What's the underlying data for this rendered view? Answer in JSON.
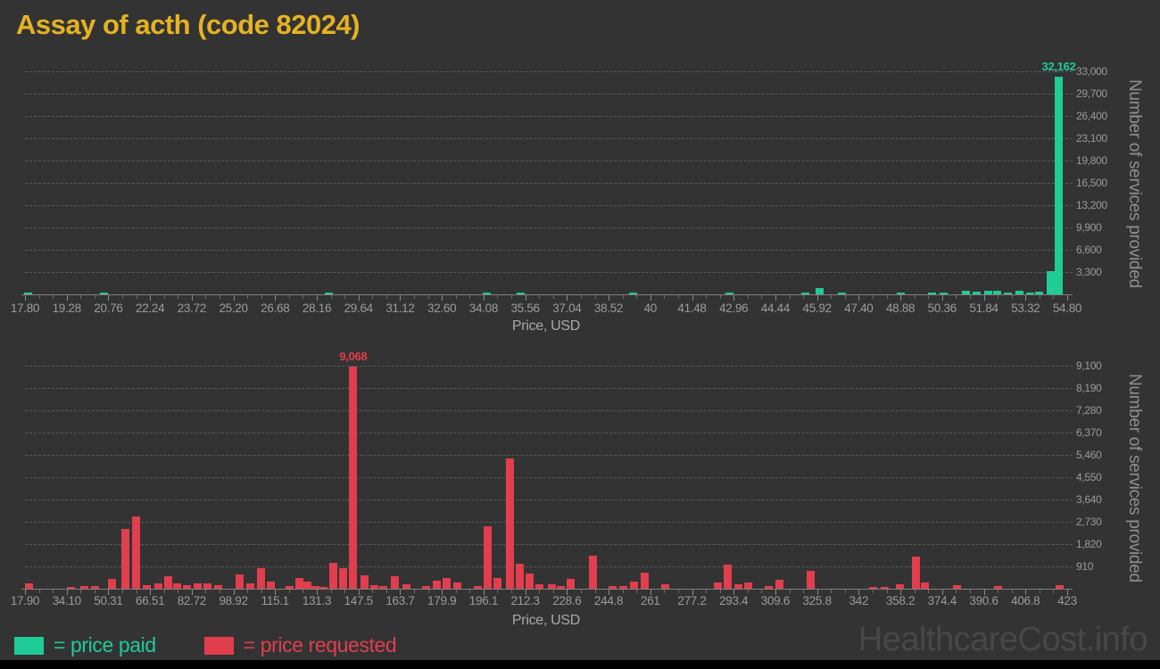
{
  "title": "Assay of acth (code 82024)",
  "watermark": "HealthcareCost.info",
  "colors": {
    "background": "#333333",
    "title": "#e5b222",
    "price_paid": "#1fcb97",
    "price_requested": "#e13e4e",
    "axis_text": "#9b9b9b",
    "grid": "#5a5a5a",
    "watermark": "#484848"
  },
  "legend": {
    "items": [
      {
        "name": "price-paid",
        "swatch_color": "#1fcb97",
        "label": "= price paid"
      },
      {
        "name": "price-requested",
        "swatch_color": "#e13e4e",
        "label": "= price requested"
      }
    ]
  },
  "chart_data": [
    {
      "type": "bar",
      "series_name": "price paid",
      "color": "#1fcb97",
      "xlabel": "Price, USD",
      "ylabel": "Number of services provided",
      "x_range": [
        17.8,
        54.8
      ],
      "x_tick_labels": [
        "17.80",
        "19.28",
        "20.76",
        "22.24",
        "23.72",
        "25.20",
        "26.68",
        "28.16",
        "29.64",
        "31.12",
        "32.60",
        "34.08",
        "35.56",
        "37.04",
        "38.52",
        "40",
        "41.48",
        "42.96",
        "44.44",
        "45.92",
        "47.40",
        "48.88",
        "50.36",
        "51.84",
        "53.32",
        "54.80"
      ],
      "y_tick_labels": [
        "3,300",
        "6,600",
        "9,900",
        "13,200",
        "16,500",
        "19,800",
        "23,100",
        "26,400",
        "29,700",
        "33,000"
      ],
      "y_grid_max": 33000,
      "grid": "horizontal-dashed",
      "legend_position": "bottom",
      "peak_label": "32,162",
      "bars": [
        [
          17.9,
          250
        ],
        [
          20.6,
          200
        ],
        [
          28.6,
          200
        ],
        [
          34.2,
          220
        ],
        [
          35.4,
          200
        ],
        [
          39.4,
          200
        ],
        [
          42.8,
          160
        ],
        [
          45.5,
          220
        ],
        [
          46.0,
          950
        ],
        [
          46.8,
          200
        ],
        [
          48.9,
          250
        ],
        [
          50.0,
          200
        ],
        [
          50.4,
          200
        ],
        [
          51.2,
          550
        ],
        [
          51.6,
          400
        ],
        [
          52.0,
          480
        ],
        [
          52.3,
          520
        ],
        [
          52.7,
          320
        ],
        [
          53.1,
          520
        ],
        [
          53.5,
          250
        ],
        [
          53.8,
          400
        ],
        [
          54.2,
          3400
        ],
        [
          54.5,
          32162
        ]
      ]
    },
    {
      "type": "bar",
      "series_name": "price requested",
      "color": "#e13e4e",
      "xlabel": "Price, USD",
      "ylabel": "Number of services provided",
      "x_range": [
        17.9,
        423
      ],
      "x_tick_labels": [
        "17.90",
        "34.10",
        "50.31",
        "66.51",
        "82.72",
        "98.92",
        "115.1",
        "131.3",
        "147.5",
        "163.7",
        "179.9",
        "196.1",
        "212.3",
        "228.6",
        "244.8",
        "261",
        "277.2",
        "293.4",
        "309.6",
        "325.8",
        "342",
        "358.2",
        "374.4",
        "390.6",
        "406.8",
        "423"
      ],
      "y_tick_labels": [
        "910",
        "1,820",
        "2,730",
        "3,640",
        "4,550",
        "5,460",
        "6,370",
        "7,280",
        "8,190",
        "9,100"
      ],
      "y_grid_max": 9100,
      "grid": "horizontal-dashed",
      "legend_position": "bottom",
      "peak_label": "9,068",
      "bars": [
        [
          19.5,
          220
        ],
        [
          35.9,
          90
        ],
        [
          41.1,
          120
        ],
        [
          45.0,
          120
        ],
        [
          51.6,
          400
        ],
        [
          56.8,
          2440
        ],
        [
          61.2,
          2950
        ],
        [
          65.4,
          160
        ],
        [
          69.6,
          220
        ],
        [
          73.4,
          500
        ],
        [
          77.2,
          220
        ],
        [
          80.9,
          160
        ],
        [
          84.9,
          220
        ],
        [
          88.7,
          220
        ],
        [
          92.9,
          160
        ],
        [
          101.4,
          580
        ],
        [
          105.6,
          220
        ],
        [
          109.6,
          830
        ],
        [
          113.3,
          290
        ],
        [
          120.9,
          100
        ],
        [
          124.7,
          430
        ],
        [
          127.8,
          290
        ],
        [
          130.9,
          100
        ],
        [
          134.0,
          80
        ],
        [
          137.6,
          1050
        ],
        [
          141.6,
          840
        ],
        [
          145.5,
          9068
        ],
        [
          149.8,
          545
        ],
        [
          153.7,
          150
        ],
        [
          157.3,
          100
        ],
        [
          161.7,
          500
        ],
        [
          166.0,
          180
        ],
        [
          173.9,
          120
        ],
        [
          177.9,
          330
        ],
        [
          181.9,
          430
        ],
        [
          186.1,
          260
        ],
        [
          193.9,
          120
        ],
        [
          197.9,
          2530
        ],
        [
          201.7,
          430
        ],
        [
          206.3,
          5320
        ],
        [
          210.1,
          1030
        ],
        [
          213.9,
          615
        ],
        [
          217.9,
          180
        ],
        [
          222.6,
          180
        ],
        [
          226.3,
          120
        ],
        [
          230.1,
          390
        ],
        [
          238.7,
          1350
        ],
        [
          246.3,
          100
        ],
        [
          250.5,
          100
        ],
        [
          254.5,
          300
        ],
        [
          258.7,
          660
        ],
        [
          266.7,
          170
        ],
        [
          287.3,
          250
        ],
        [
          291.1,
          990
        ],
        [
          295.3,
          200
        ],
        [
          299.1,
          250
        ],
        [
          307.0,
          120
        ],
        [
          311.3,
          350
        ],
        [
          323.3,
          730
        ],
        [
          347.6,
          90
        ],
        [
          352.1,
          90
        ],
        [
          357.8,
          180
        ],
        [
          364.1,
          1310
        ],
        [
          367.8,
          250
        ],
        [
          380.0,
          150
        ],
        [
          396.2,
          120
        ],
        [
          420.0,
          150
        ]
      ]
    }
  ]
}
